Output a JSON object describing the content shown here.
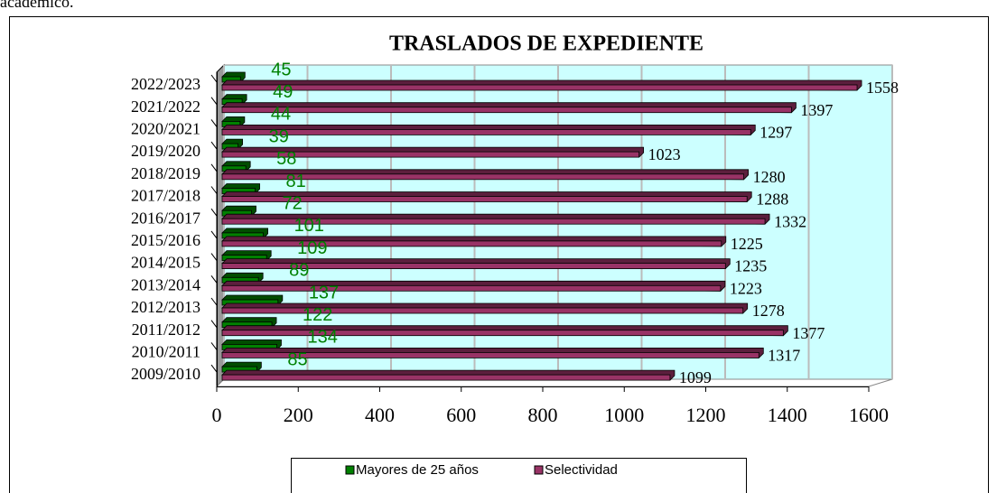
{
  "context_text": "académico.",
  "chart_data": {
    "type": "bar",
    "orientation": "horizontal",
    "title": "TRASLADOS DE EXPEDIENTE",
    "categories": [
      "2022/2023",
      "2021/2022",
      "2020/2021",
      "2019/2020",
      "2018/2019",
      "2017/2018",
      "2016/2017",
      "2015/2016",
      "2014/2015",
      "2013/2014",
      "2012/2013",
      "2011/2012",
      "2010/2011",
      "2009/2010"
    ],
    "series": [
      {
        "name": "Mayores de 25 años",
        "color": "#008000",
        "values": [
          45,
          49,
          44,
          39,
          58,
          81,
          72,
          101,
          109,
          89,
          137,
          122,
          134,
          85
        ]
      },
      {
        "name": "Selectividad",
        "color": "#993366",
        "values": [
          1558,
          1397,
          1297,
          1023,
          1280,
          1288,
          1332,
          1225,
          1235,
          1223,
          1278,
          1377,
          1317,
          1099
        ]
      }
    ],
    "xlim": [
      0,
      1600
    ],
    "xticks": [
      0,
      200,
      400,
      600,
      800,
      1000,
      1200,
      1400,
      1600
    ],
    "grid": true,
    "legend": "bottom"
  }
}
